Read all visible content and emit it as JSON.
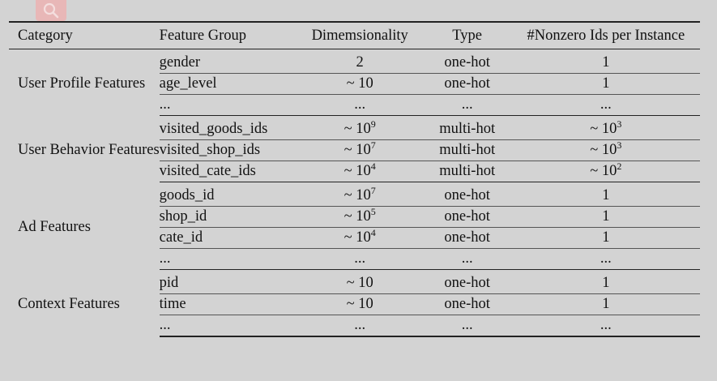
{
  "header": {
    "category": "Category",
    "feature_group": "Feature Group",
    "dimensionality": "Dimemsionality",
    "type": "Type",
    "nonzero": "#Nonzero Ids per Instance"
  },
  "sections": {
    "user_profile": {
      "category": "User Profile Features",
      "rows": [
        {
          "group": "gender",
          "dim": "2",
          "type": "one-hot",
          "nz": "1"
        },
        {
          "group": "age_level",
          "dim": "~ 10",
          "type": "one-hot",
          "nz": "1"
        },
        {
          "group": "...",
          "dim": "...",
          "type": "...",
          "nz": "..."
        }
      ]
    },
    "user_behavior": {
      "category": "User Behavior Features",
      "rows": [
        {
          "group": "visited_goods_ids",
          "dim_base": "~ 10",
          "dim_exp": "9",
          "type": "multi-hot",
          "nz_base": "~ 10",
          "nz_exp": "3"
        },
        {
          "group": "visited_shop_ids",
          "dim_base": "~ 10",
          "dim_exp": "7",
          "type": "multi-hot",
          "nz_base": "~ 10",
          "nz_exp": "3"
        },
        {
          "group": "visited_cate_ids",
          "dim_base": "~ 10",
          "dim_exp": "4",
          "type": "multi-hot",
          "nz_base": "~ 10",
          "nz_exp": "2"
        }
      ]
    },
    "ad": {
      "category": "Ad Features",
      "rows": [
        {
          "group": "goods_id",
          "dim_base": "~ 10",
          "dim_exp": "7",
          "type": "one-hot",
          "nz": "1"
        },
        {
          "group": "shop_id",
          "dim_base": "~ 10",
          "dim_exp": "5",
          "type": "one-hot",
          "nz": "1"
        },
        {
          "group": "cate_id",
          "dim_base": "~ 10",
          "dim_exp": "4",
          "type": "one-hot",
          "nz": "1"
        },
        {
          "group": "...",
          "dim": "...",
          "type": "...",
          "nz": "..."
        }
      ]
    },
    "context": {
      "category": "Context Features",
      "rows": [
        {
          "group": "pid",
          "dim": "~ 10",
          "type": "one-hot",
          "nz": "1"
        },
        {
          "group": "time",
          "dim": "~ 10",
          "type": "one-hot",
          "nz": "1"
        },
        {
          "group": "...",
          "dim": "...",
          "type": "...",
          "nz": "..."
        }
      ]
    }
  },
  "icons": {
    "search_badge": "search-icon"
  },
  "colors": {
    "background": "#d3d3d3",
    "rule": "#222222",
    "badge": "#e8b7b7"
  }
}
